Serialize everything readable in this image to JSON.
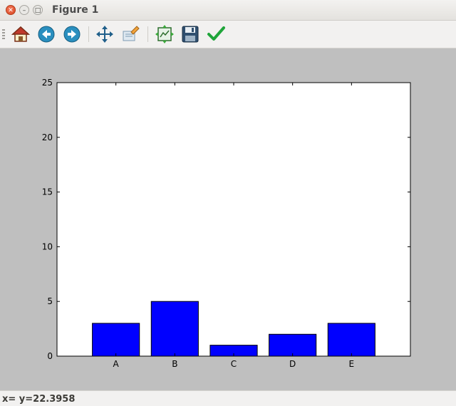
{
  "window": {
    "title": "Figure 1"
  },
  "toolbar": {
    "buttons": [
      {
        "name": "home-button",
        "icon": "home-icon"
      },
      {
        "name": "back-button",
        "icon": "arrow-left-icon"
      },
      {
        "name": "forward-button",
        "icon": "arrow-right-icon"
      },
      {
        "name": "pan-button",
        "icon": "move-icon"
      },
      {
        "name": "zoom-button",
        "icon": "zoom-rect-icon"
      },
      {
        "name": "subplots-button",
        "icon": "subplots-icon"
      },
      {
        "name": "save-button",
        "icon": "floppy-icon"
      },
      {
        "name": "edit-button",
        "icon": "checkmark-icon"
      }
    ]
  },
  "status": {
    "text": "x= y=22.3958"
  },
  "chart_data": {
    "type": "bar",
    "categories": [
      "A",
      "B",
      "C",
      "D",
      "E"
    ],
    "values": [
      3,
      5,
      1,
      2,
      3
    ],
    "ylim": [
      0,
      25
    ],
    "yticks": [
      "0",
      "5",
      "10",
      "15",
      "20",
      "25"
    ],
    "title": "",
    "xlabel": "",
    "ylabel": "",
    "bar_color": "#0000ff",
    "grid": false
  }
}
